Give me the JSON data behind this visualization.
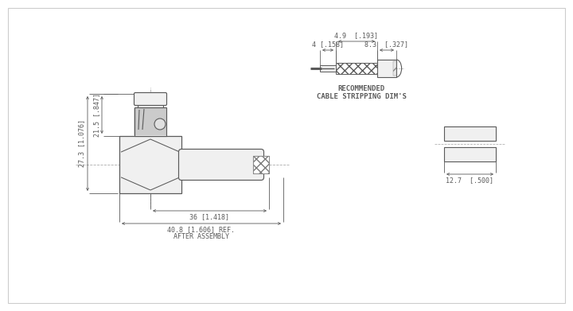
{
  "bg_color": "#ffffff",
  "line_color": "#5a5a5a",
  "dim_color": "#5a5a5a",
  "annotations": {
    "dim_27_3": "27.3 [1.076]",
    "dim_21_5": "21.5 [.847]",
    "dim_36": "36 [1.418]",
    "dim_40_8": "40.8 [1.606] REF.",
    "after_assembly": "AFTER ASSEMBLY",
    "dim_4_9": "4.9  [.193]",
    "dim_4": "4 [.158]",
    "dim_8_3": "8.3  [.327]",
    "dim_12_7": "12.7  [.500]",
    "rec_cable": "RECOMMENDED",
    "cable_strip": "CABLE STRIPPING DIM'S"
  },
  "font_size_dim": 6.0,
  "font_size_label": 6.5
}
